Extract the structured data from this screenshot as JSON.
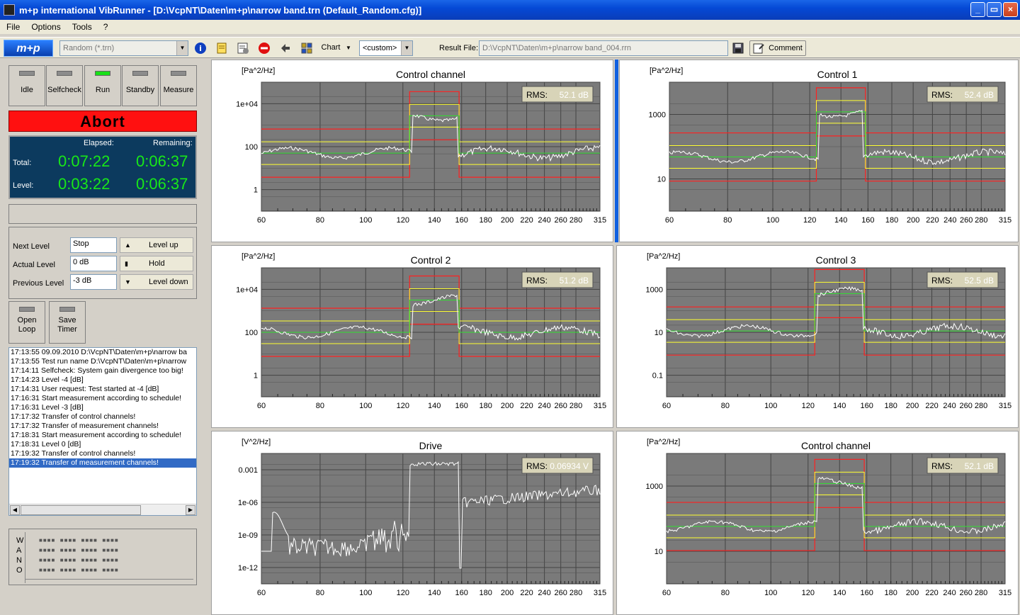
{
  "window": {
    "title": "m+p international VibRunner - [D:\\VcpNT\\Daten\\m+p\\narrow band.trn      (Default_Random.cfg)]"
  },
  "window_buttons": {
    "minimize": "_",
    "maximize": "▭",
    "close": "×"
  },
  "menu": [
    "File",
    "Options",
    "Tools",
    "?"
  ],
  "toolbar": {
    "logo": "m+p",
    "mode_combo": "Random (*.trn)",
    "chart_label": "Chart",
    "custom_combo": "<custom>",
    "result_label": "Result File:",
    "result_path": "D:\\VcpNT\\Daten\\m+p\\narrow band_004.rrn",
    "comment_label": "Comment",
    "icons": [
      "info-icon",
      "notes-icon",
      "settings-icon",
      "stop-icon",
      "back-icon",
      "chart-grid-icon",
      "save-icon",
      "comment-icon"
    ]
  },
  "modes": [
    {
      "label": "Idle",
      "active": false
    },
    {
      "label": "Selfcheck",
      "active": false
    },
    {
      "label": "Run",
      "active": true
    },
    {
      "label": "Standby",
      "active": false
    },
    {
      "label": "Measure",
      "active": false
    }
  ],
  "abort_label": "Abort",
  "timer": {
    "elapsed_hdr": "Elapsed:",
    "remaining_hdr": "Remaining:",
    "total_label": "Total:",
    "level_label": "Level:",
    "total_elapsed": "0:07:22",
    "total_remaining": "0:06:37",
    "level_elapsed": "0:03:22",
    "level_remaining": "0:06:37"
  },
  "levels": {
    "next_label": "Next Level",
    "next_value": "Stop",
    "actual_label": "Actual Level",
    "actual_value": "0 dB",
    "previous_label": "Previous Level",
    "previous_value": "-3 dB",
    "up_label": "Level up",
    "hold_label": "Hold",
    "down_label": "Level down"
  },
  "side_buttons": {
    "open_loop": [
      "Open",
      "Loop"
    ],
    "save_timer": [
      "Save",
      "Timer"
    ]
  },
  "log": [
    "17:13:55 09.09.2010 D:\\VcpNT\\Daten\\m+p\\narrow ba",
    "17:13:55 Test run name D:\\VcpNT\\Daten\\m+p\\narrow",
    "17:14:11 Selfcheck: System gain divergence too big!",
    "17:14:23 Level                    -4 [dB]",
    "17:14:31 User request: Test started at      -4 [dB]",
    "17:16:31 Start measurement according to schedule!",
    "17:16:31 Level                    -3 [dB]",
    "17:17:32 Transfer of control channels!",
    "17:17:32 Transfer of measurement channels!",
    "17:18:31 Start measurement according to schedule!",
    "17:18:31 Level                     0 [dB]",
    "17:19:32 Transfer of control channels!",
    "17:19:32 Transfer of measurement channels!"
  ],
  "status_letters": [
    "W",
    "A",
    "N",
    "O"
  ],
  "charts": [
    {
      "title": "Control channel",
      "unit": "[Pa^2/Hz]",
      "rms_label": "RMS:",
      "rms": "52.1 dB",
      "yticks": [
        "1e+04",
        "100",
        "1"
      ],
      "plateau": 0.74,
      "low": 0.45
    },
    {
      "title": "Control 1",
      "unit": "[Pa^2/Hz]",
      "rms_label": "RMS:",
      "rms": "52.4 dB",
      "yticks": [
        "1000",
        "10"
      ],
      "plateau": 0.77,
      "low": 0.42
    },
    {
      "title": "Control 2",
      "unit": "[Pa^2/Hz]",
      "rms_label": "RMS:",
      "rms": "51.2 dB",
      "yticks": [
        "1e+04",
        "100",
        "1"
      ],
      "plateau": 0.75,
      "low": 0.5
    },
    {
      "title": "Control 3",
      "unit": "[Pa^2/Hz]",
      "rms_label": "RMS:",
      "rms": "52.5 dB",
      "yticks": [
        "1000",
        "10",
        "0.1"
      ],
      "plateau": 0.8,
      "low": 0.51
    },
    {
      "title": "Drive",
      "unit": "[V^2/Hz]",
      "rms_label": "RMS:",
      "rms": "0.06934 V",
      "yticks": [
        "0.001",
        "1e-06",
        "1e-09",
        "1e-12"
      ],
      "plateau": 0,
      "low": 0
    },
    {
      "title": "Control channel",
      "unit": "[Pa^2/Hz]",
      "rms_label": "RMS:",
      "rms": "52.1 dB",
      "yticks": [
        "1000",
        "10"
      ],
      "plateau": 0.77,
      "low": 0.44
    }
  ],
  "xticks": [
    "60",
    "80",
    "100",
    "120",
    "140",
    "160",
    "180",
    "200",
    "220",
    "240",
    "260",
    "280",
    "315"
  ],
  "colors": {
    "plot_bg": "#7a7a7a",
    "red": "#ff2020",
    "yellow": "#ffff30",
    "green": "#30e030",
    "trace": "#ffffff"
  }
}
